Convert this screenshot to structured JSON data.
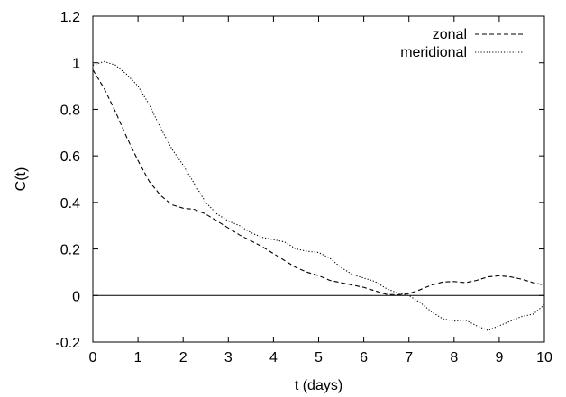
{
  "chart_data": {
    "type": "line",
    "title": "",
    "xlabel": "t  (days)",
    "ylabel": "C(t)",
    "xlim": [
      0,
      10
    ],
    "ylim": [
      -0.2,
      1.2
    ],
    "x_ticks": [
      "0",
      "1",
      "2",
      "3",
      "4",
      "5",
      "6",
      "7",
      "8",
      "9",
      "10"
    ],
    "y_ticks": [
      "-0.2",
      "0",
      "0.2",
      "0.4",
      "0.6",
      "0.8",
      "1",
      "1.2"
    ],
    "zero_line": true,
    "grid": false,
    "legend_position": "top-right",
    "series": [
      {
        "name": "zonal",
        "line_style": "dashed",
        "color": "#000000",
        "x": [
          0,
          0.25,
          0.5,
          0.75,
          1,
          1.25,
          1.5,
          1.75,
          2,
          2.25,
          2.5,
          2.75,
          3,
          3.25,
          3.5,
          3.75,
          4,
          4.25,
          4.5,
          4.75,
          5,
          5.25,
          5.5,
          5.75,
          6,
          6.25,
          6.5,
          6.75,
          7,
          7.25,
          7.5,
          7.75,
          8,
          8.25,
          8.5,
          8.75,
          9,
          9.25,
          9.5,
          9.75,
          10
        ],
        "values": [
          0.97,
          0.89,
          0.79,
          0.68,
          0.58,
          0.49,
          0.43,
          0.39,
          0.375,
          0.37,
          0.35,
          0.32,
          0.29,
          0.26,
          0.235,
          0.21,
          0.18,
          0.15,
          0.12,
          0.1,
          0.085,
          0.065,
          0.055,
          0.045,
          0.035,
          0.02,
          0.005,
          0.003,
          0.008,
          0.025,
          0.045,
          0.058,
          0.06,
          0.055,
          0.065,
          0.08,
          0.085,
          0.08,
          0.07,
          0.055,
          0.045
        ]
      },
      {
        "name": "meridional",
        "line_style": "dotted",
        "color": "#000000",
        "x": [
          0,
          0.25,
          0.5,
          0.75,
          1,
          1.25,
          1.5,
          1.75,
          2,
          2.25,
          2.5,
          2.75,
          3,
          3.25,
          3.5,
          3.75,
          4,
          4.25,
          4.5,
          4.75,
          5,
          5.25,
          5.5,
          5.75,
          6,
          6.25,
          6.5,
          6.75,
          7,
          7.25,
          7.5,
          7.75,
          8,
          8.25,
          8.5,
          8.75,
          9,
          9.25,
          9.5,
          9.75,
          10
        ],
        "values": [
          0.99,
          1.005,
          0.99,
          0.95,
          0.9,
          0.82,
          0.72,
          0.63,
          0.56,
          0.48,
          0.4,
          0.35,
          0.32,
          0.3,
          0.27,
          0.25,
          0.24,
          0.23,
          0.2,
          0.19,
          0.185,
          0.16,
          0.12,
          0.09,
          0.075,
          0.06,
          0.03,
          0.01,
          0.0,
          -0.03,
          -0.07,
          -0.1,
          -0.11,
          -0.105,
          -0.13,
          -0.15,
          -0.13,
          -0.11,
          -0.09,
          -0.08,
          -0.04
        ]
      }
    ]
  }
}
